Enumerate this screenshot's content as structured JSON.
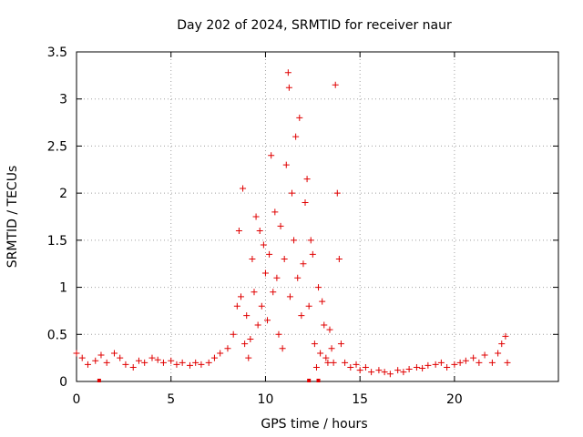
{
  "chart_data": {
    "type": "scatter",
    "title": "Day 202 of 2024, SRMTID for receiver naur",
    "xlabel": "GPS time / hours",
    "ylabel": "SRMTID / TECUs",
    "xlim": [
      0,
      25.5
    ],
    "ylim": [
      0,
      3.5
    ],
    "xticks": [
      0,
      5,
      10,
      15,
      20
    ],
    "xtick_labels": [
      "0",
      "5",
      "10",
      "15",
      "20"
    ],
    "yticks": [
      0,
      0.5,
      1,
      1.5,
      2,
      2.5,
      3,
      3.5
    ],
    "ytick_labels": [
      "0",
      "0.5",
      "1",
      "1.5",
      "2",
      "2.5",
      "3",
      "3.5"
    ],
    "grid": true,
    "marker": "+",
    "marker_color": "#e00000",
    "series": [
      {
        "name": "SRMTID",
        "x": [
          0.0,
          0.3,
          0.6,
          1.0,
          1.3,
          1.6,
          2.0,
          2.3,
          2.6,
          3.0,
          3.3,
          3.6,
          4.0,
          4.3,
          4.6,
          5.0,
          5.3,
          5.6,
          6.0,
          6.3,
          6.6,
          7.0,
          7.3,
          7.6,
          8.0,
          8.3,
          8.5,
          8.6,
          8.7,
          8.8,
          8.9,
          9.0,
          9.1,
          9.2,
          9.3,
          9.4,
          9.5,
          9.6,
          9.7,
          9.8,
          9.9,
          10.0,
          10.1,
          10.2,
          10.3,
          10.4,
          10.5,
          10.6,
          10.7,
          10.8,
          10.9,
          11.0,
          11.1,
          11.2,
          11.25,
          11.3,
          11.4,
          11.5,
          11.6,
          11.7,
          11.8,
          11.9,
          12.0,
          12.1,
          12.2,
          12.3,
          12.4,
          12.5,
          12.6,
          12.7,
          12.8,
          12.9,
          13.0,
          13.1,
          13.2,
          13.3,
          13.4,
          13.5,
          13.6,
          13.7,
          13.8,
          13.9,
          14.0,
          14.2,
          14.5,
          14.8,
          15.0,
          15.3,
          15.6,
          16.0,
          16.3,
          16.6,
          17.0,
          17.3,
          17.6,
          18.0,
          18.3,
          18.6,
          19.0,
          19.3,
          19.6,
          20.0,
          20.3,
          20.6,
          21.0,
          21.3,
          21.6,
          22.0,
          22.3,
          22.5,
          22.7,
          22.8
        ],
        "y": [
          0.3,
          0.25,
          0.18,
          0.22,
          0.28,
          0.2,
          0.3,
          0.25,
          0.18,
          0.15,
          0.22,
          0.2,
          0.25,
          0.23,
          0.2,
          0.22,
          0.18,
          0.2,
          0.17,
          0.2,
          0.18,
          0.2,
          0.25,
          0.3,
          0.35,
          0.5,
          0.8,
          1.6,
          0.9,
          2.05,
          0.4,
          0.7,
          0.25,
          0.45,
          1.3,
          0.95,
          1.75,
          0.6,
          1.6,
          0.8,
          1.45,
          1.15,
          0.65,
          1.35,
          2.4,
          0.95,
          1.8,
          1.1,
          0.5,
          1.65,
          0.35,
          1.3,
          2.3,
          3.28,
          3.12,
          0.9,
          2.0,
          1.5,
          2.6,
          1.1,
          2.8,
          0.7,
          1.25,
          1.9,
          2.15,
          0.8,
          1.5,
          1.35,
          0.4,
          0.15,
          1.0,
          0.3,
          0.85,
          0.6,
          0.25,
          0.2,
          0.55,
          0.35,
          0.2,
          3.15,
          2.0,
          1.3,
          0.4,
          0.2,
          0.15,
          0.18,
          0.12,
          0.15,
          0.1,
          0.12,
          0.1,
          0.08,
          0.12,
          0.1,
          0.13,
          0.15,
          0.14,
          0.17,
          0.18,
          0.2,
          0.15,
          0.18,
          0.2,
          0.22,
          0.25,
          0.2,
          0.28,
          0.2,
          0.3,
          0.4,
          0.48,
          0.2
        ]
      }
    ],
    "baseline_markers_x": [
      1.2,
      12.3,
      12.8
    ]
  }
}
